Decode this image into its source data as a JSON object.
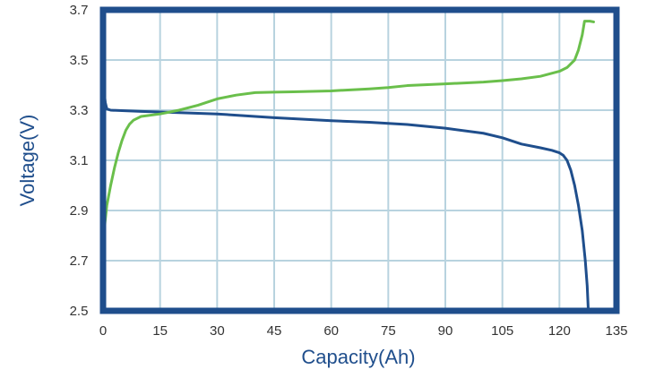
{
  "chart_data": {
    "type": "line",
    "title": "",
    "xlabel": "Capacity(Ah)",
    "ylabel": "Voltage(V)",
    "xlim": [
      0,
      135
    ],
    "ylim": [
      2.5,
      3.7
    ],
    "xticks": [
      0,
      15,
      30,
      45,
      60,
      75,
      90,
      105,
      120,
      135
    ],
    "yticks": [
      2.5,
      2.7,
      2.9,
      3.1,
      3.3,
      3.5,
      3.7
    ],
    "xtick_labels": [
      "0",
      "15",
      "30",
      "45",
      "60",
      "75",
      "90",
      "105",
      "120",
      "135"
    ],
    "ytick_labels": [
      "2.5",
      "2.7",
      "2.9",
      "3.1",
      "3.3",
      "3.5",
      "3.7"
    ],
    "grid": true,
    "legend": "none",
    "series": [
      {
        "color": "#1f4e8c",
        "points": [
          [
            0,
            3.44
          ],
          [
            0.3,
            3.37
          ],
          [
            0.6,
            3.33
          ],
          [
            1,
            3.305
          ],
          [
            2,
            3.3
          ],
          [
            5,
            3.298
          ],
          [
            10,
            3.295
          ],
          [
            15,
            3.293
          ],
          [
            20,
            3.29
          ],
          [
            30,
            3.285
          ],
          [
            40,
            3.275
          ],
          [
            45,
            3.27
          ],
          [
            55,
            3.262
          ],
          [
            60,
            3.258
          ],
          [
            70,
            3.252
          ],
          [
            80,
            3.243
          ],
          [
            90,
            3.228
          ],
          [
            100,
            3.208
          ],
          [
            105,
            3.19
          ],
          [
            110,
            3.165
          ],
          [
            115,
            3.15
          ],
          [
            118,
            3.14
          ],
          [
            120,
            3.13
          ],
          [
            121,
            3.12
          ],
          [
            122,
            3.1
          ],
          [
            123,
            3.06
          ],
          [
            124,
            3.0
          ],
          [
            125,
            2.92
          ],
          [
            126,
            2.82
          ],
          [
            126.8,
            2.7
          ],
          [
            127.3,
            2.6
          ],
          [
            127.6,
            2.5
          ]
        ]
      },
      {
        "color": "#6abf4b",
        "points": [
          [
            0,
            2.72
          ],
          [
            0.5,
            2.85
          ],
          [
            1,
            2.92
          ],
          [
            2,
            3.0
          ],
          [
            3,
            3.07
          ],
          [
            4,
            3.13
          ],
          [
            5,
            3.18
          ],
          [
            6,
            3.22
          ],
          [
            7,
            3.245
          ],
          [
            8,
            3.26
          ],
          [
            10,
            3.275
          ],
          [
            15,
            3.285
          ],
          [
            20,
            3.3
          ],
          [
            25,
            3.32
          ],
          [
            30,
            3.345
          ],
          [
            35,
            3.36
          ],
          [
            40,
            3.37
          ],
          [
            45,
            3.372
          ],
          [
            50,
            3.373
          ],
          [
            60,
            3.377
          ],
          [
            70,
            3.385
          ],
          [
            75,
            3.39
          ],
          [
            80,
            3.398
          ],
          [
            90,
            3.405
          ],
          [
            100,
            3.412
          ],
          [
            105,
            3.418
          ],
          [
            110,
            3.425
          ],
          [
            115,
            3.435
          ],
          [
            120,
            3.455
          ],
          [
            122,
            3.47
          ],
          [
            124,
            3.5
          ],
          [
            125,
            3.54
          ],
          [
            126,
            3.6
          ],
          [
            126.6,
            3.655
          ],
          [
            128,
            3.655
          ],
          [
            129,
            3.652
          ]
        ]
      }
    ]
  },
  "colors": {
    "frame": "#1f4e8c",
    "grid": "#b8d3df",
    "axis_title": "#1f4e8c",
    "tick_text": "#333333"
  }
}
